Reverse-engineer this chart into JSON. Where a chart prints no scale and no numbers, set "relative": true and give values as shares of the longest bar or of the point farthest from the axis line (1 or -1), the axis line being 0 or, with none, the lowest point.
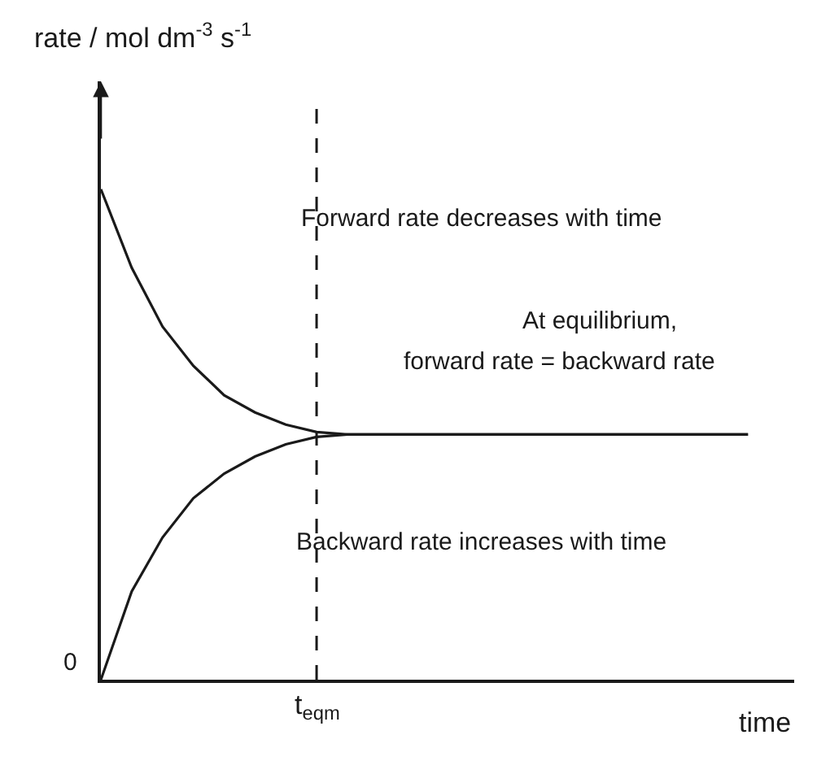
{
  "chart_data": {
    "type": "line",
    "relative": true,
    "ylabel": "rate / mol dm$^{-3}$ s$^{-1}$",
    "xlabel": "time",
    "categories": [
      null,
      null,
      null,
      null,
      null,
      null,
      null,
      null,
      null,
      null,
      null,
      null,
      null,
      null,
      null,
      null,
      null,
      null,
      null,
      null,
      null,
      null
    ],
    "series": [
      {
        "color": "#1a1a1a",
        "values": [
          1,
          0.84,
          0.72,
          0.64,
          0.58,
          0.545,
          0.52,
          0.505,
          0.5,
          0.5,
          0.5,
          0.5,
          0.5,
          0.5,
          0.5,
          0.5,
          0.5,
          0.5,
          0.5,
          0.5,
          0.5,
          0.5
        ]
      },
      {
        "color": "#1a1a1a",
        "values": [
          0,
          0.18,
          0.29,
          0.37,
          0.42,
          0.455,
          0.48,
          0.495,
          0.5,
          0.5,
          0.5,
          0.5,
          0.5,
          0.5,
          0.5,
          0.5,
          0.5,
          0.5,
          0.5,
          0.5,
          0.5,
          0.5
        ]
      }
    ],
    "annotations": [
      "Forward rate decreases with time",
      "At equilibrium,",
      "forward rate = backward rate",
      "Backward rate increases with time",
      "0",
      "t$_{eqm}$"
    ],
    "marker": "none",
    "line_style": "solid"
  }
}
